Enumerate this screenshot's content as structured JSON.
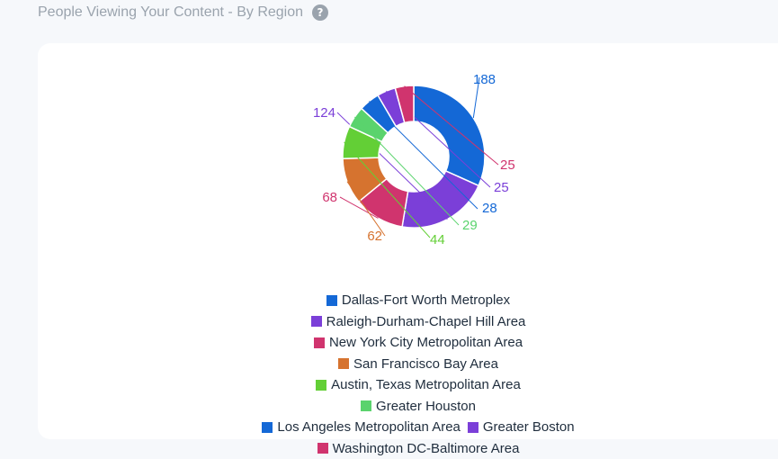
{
  "header": {
    "title": "People Viewing Your Content - By Region",
    "help_icon": "?"
  },
  "chart_data": {
    "type": "pie",
    "variant": "donut",
    "legend_position": "bottom",
    "categories": [
      "Dallas-Fort Worth Metroplex",
      "Raleigh-Durham-Chapel Hill Area",
      "New York City Metropolitan Area",
      "San Francisco Bay Area",
      "Austin, Texas Metropolitan Area",
      "Greater Houston",
      "Los Angeles Metropolitan Area",
      "Greater Boston",
      "Washington DC-Baltimore Area"
    ],
    "values": [
      188,
      124,
      68,
      62,
      44,
      29,
      28,
      25,
      25
    ],
    "colors": [
      "#1468d6",
      "#7b3fd8",
      "#d0346e",
      "#d6732f",
      "#63cf36",
      "#5ad36d",
      "#1468d6",
      "#7b3fd8",
      "#d0346e"
    ],
    "data_labels": [
      "188",
      "124",
      "68",
      "62",
      "44",
      "29",
      "28",
      "25",
      "25"
    ]
  }
}
